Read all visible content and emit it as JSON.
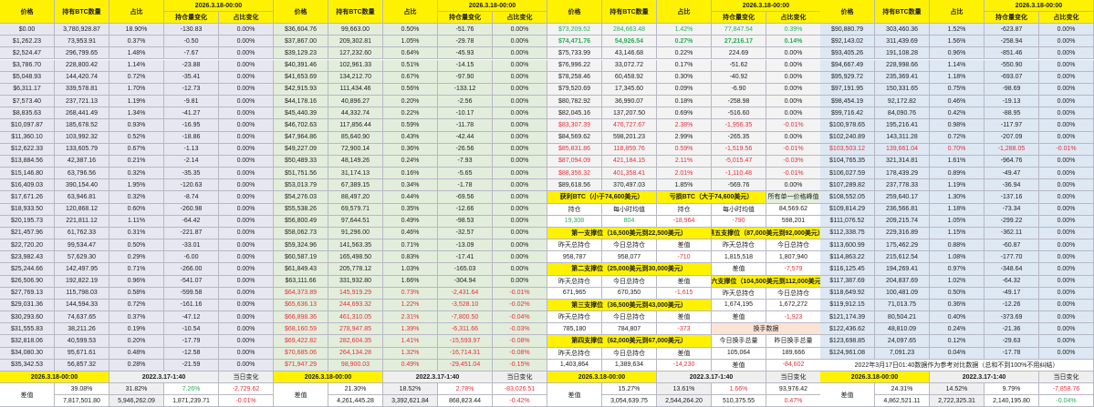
{
  "headers": {
    "price": "价格",
    "btc": "持有BTC数量",
    "pct": "占比",
    "date": "2026.3.18-00:00",
    "chg": "持仓量变化",
    "pctchg": "占比变化"
  },
  "colors": {
    "header": "#fff200",
    "red": "#e0323c",
    "green": "#2eaa5a"
  },
  "blocks": [
    {
      "rows": [
        [
          "$0.00",
          "3,780,928.87",
          "18.90%",
          "-130.83",
          "0.00%",
          ""
        ],
        [
          "$1,262.23",
          "73,953.91",
          "0.37%",
          "-0.50",
          "0.00%",
          ""
        ],
        [
          "$2,524.47",
          "296,799.65",
          "1.48%",
          "-7.67",
          "0.00%",
          ""
        ],
        [
          "$3,786.70",
          "228,800.42",
          "1.14%",
          "-23.88",
          "0.00%",
          ""
        ],
        [
          "$5,048.93",
          "144,420.74",
          "0.72%",
          "-35.41",
          "0.00%",
          ""
        ],
        [
          "$6,311.17",
          "339,578.81",
          "1.70%",
          "-12.73",
          "0.00%",
          ""
        ],
        [
          "$7,573.40",
          "237,721.13",
          "1.19%",
          "-9.81",
          "0.00%",
          ""
        ],
        [
          "$8,835.63",
          "268,441.49",
          "1.34%",
          "-41.27",
          "0.00%",
          ""
        ],
        [
          "$10,097.87",
          "185,678.52",
          "0.93%",
          "-16.95",
          "0.00%",
          ""
        ],
        [
          "$11,360.10",
          "103,992.32",
          "0.52%",
          "-18.86",
          "0.00%",
          ""
        ],
        [
          "$12,622.33",
          "133,605.79",
          "0.67%",
          "-1.13",
          "0.00%",
          ""
        ],
        [
          "$13,884.56",
          "42,387.16",
          "0.21%",
          "-2.14",
          "0.00%",
          ""
        ],
        [
          "$15,146.80",
          "63,796.56",
          "0.32%",
          "-35.35",
          "0.00%",
          ""
        ],
        [
          "$16,409.03",
          "390,154.40",
          "1.95%",
          "-120.63",
          "0.00%",
          ""
        ],
        [
          "$17,671.26",
          "63,946.81",
          "0.32%",
          "-8.74",
          "0.00%",
          ""
        ],
        [
          "$18,933.50",
          "120,868.12",
          "0.60%",
          "-260.98",
          "0.00%",
          ""
        ],
        [
          "$20,195.73",
          "221,811.12",
          "1.11%",
          "-64.42",
          "0.00%",
          ""
        ],
        [
          "$21,457.96",
          "61,762.33",
          "0.31%",
          "-221.87",
          "0.00%",
          ""
        ],
        [
          "$22,720.20",
          "99,534.47",
          "0.50%",
          "-33.01",
          "0.00%",
          ""
        ],
        [
          "$23,982.43",
          "57,629.30",
          "0.29%",
          "-6.00",
          "0.00%",
          ""
        ],
        [
          "$25,244.66",
          "142,497.95",
          "0.71%",
          "-266.00",
          "0.00%",
          ""
        ],
        [
          "$26,506.90",
          "192,822.19",
          "0.96%",
          "-541.07",
          "0.00%",
          ""
        ],
        [
          "$27,769.13",
          "115,798.03",
          "0.58%",
          "-599.58",
          "0.00%",
          ""
        ],
        [
          "$29,031.36",
          "144,594.33",
          "0.72%",
          "-161.16",
          "0.00%",
          ""
        ],
        [
          "$30,293.60",
          "74,637.65",
          "0.37%",
          "-47.12",
          "0.00%",
          ""
        ],
        [
          "$31,555.83",
          "38,211.26",
          "0.19%",
          "-10.54",
          "0.00%",
          ""
        ],
        [
          "$32,818.06",
          "40,599.53",
          "0.20%",
          "-17.79",
          "0.00%",
          ""
        ],
        [
          "$34,080.30",
          "95,671.61",
          "0.48%",
          "-12.58",
          "0.00%",
          ""
        ],
        [
          "$35,342.53",
          "56,857.32",
          "0.28%",
          "-21.59",
          "0.00%",
          ""
        ]
      ],
      "footer": {
        "date_now": "2026.3.18-00:00",
        "date_ref": "2022.3.17-1:40",
        "daily": "当日变化",
        "label": "差值",
        "r1": [
          "39.08%",
          "31.82%",
          "7.26%",
          "-2,729.62"
        ],
        "r1tone": [
          "",
          "",
          "g",
          "r"
        ],
        "r2": [
          "7,817,501.80",
          "5,946,262.09",
          "1,871,239.71",
          "-0.01%"
        ],
        "r2tone": [
          "",
          "",
          "",
          "r"
        ]
      }
    },
    {
      "rows": [
        [
          "$36,604.76",
          "99,663.00",
          "0.50%",
          "-51.76",
          "0.00%",
          ""
        ],
        [
          "$37,867.00",
          "209,302.81",
          "1.05%",
          "-29.78",
          "0.00%",
          ""
        ],
        [
          "$39,129.23",
          "127,232.60",
          "0.64%",
          "-45.93",
          "0.00%",
          ""
        ],
        [
          "$40,391.46",
          "102,961.33",
          "0.51%",
          "-14.15",
          "0.00%",
          ""
        ],
        [
          "$41,653.69",
          "134,212.70",
          "0.67%",
          "-97.90",
          "0.00%",
          ""
        ],
        [
          "$42,915.93",
          "111,434.46",
          "0.56%",
          "-133.12",
          "0.00%",
          ""
        ],
        [
          "$44,178.16",
          "40,896.27",
          "0.20%",
          "-2.56",
          "0.00%",
          ""
        ],
        [
          "$45,440.39",
          "44,332.74",
          "0.22%",
          "-10.17",
          "0.00%",
          ""
        ],
        [
          "$46,702.63",
          "117,856.44",
          "0.59%",
          "-11.78",
          "0.00%",
          ""
        ],
        [
          "$47,964.86",
          "85,640.90",
          "0.43%",
          "-42.44",
          "0.00%",
          ""
        ],
        [
          "$49,227.09",
          "72,900.14",
          "0.36%",
          "-26.56",
          "0.00%",
          ""
        ],
        [
          "$50,489.33",
          "48,149.26",
          "0.24%",
          "-7.93",
          "0.00%",
          ""
        ],
        [
          "$51,751.56",
          "31,174.13",
          "0.16%",
          "-5.65",
          "0.00%",
          ""
        ],
        [
          "$53,013.79",
          "67,389.15",
          "0.34%",
          "-1.78",
          "0.00%",
          ""
        ],
        [
          "$54,276.03",
          "88,497.20",
          "0.44%",
          "-69.56",
          "0.00%",
          ""
        ],
        [
          "$55,538.26",
          "69,579.71",
          "0.35%",
          "-12.66",
          "0.00%",
          ""
        ],
        [
          "$56,800.49",
          "97,644.51",
          "0.49%",
          "-98.53",
          "0.00%",
          ""
        ],
        [
          "$58,062.73",
          "91,296.00",
          "0.46%",
          "-32.57",
          "0.00%",
          ""
        ],
        [
          "$59,324.96",
          "141,563.35",
          "0.71%",
          "-13.09",
          "0.00%",
          ""
        ],
        [
          "$60,587.19",
          "165,498.50",
          "0.83%",
          "-17.41",
          "0.00%",
          ""
        ],
        [
          "$61,849.43",
          "205,778.12",
          "1.03%",
          "-165.03",
          "0.00%",
          ""
        ],
        [
          "$63,111.66",
          "331,932.80",
          "1.66%",
          "-304.94",
          "0.00%",
          ""
        ],
        [
          "$64,373.89",
          "145,919.29",
          "0.73%",
          "-2,431.64",
          "-0.01%",
          "r"
        ],
        [
          "$65,636.13",
          "244,693.32",
          "1.22%",
          "-3,528.10",
          "-0.02%",
          "r"
        ],
        [
          "$66,898.36",
          "461,310.05",
          "2.31%",
          "-7,800.50",
          "-0.04%",
          "r"
        ],
        [
          "$68,160.59",
          "278,947.85",
          "1.39%",
          "-6,311.66",
          "-0.03%",
          "r"
        ],
        [
          "$69,422.82",
          "282,604.35",
          "1.41%",
          "-15,593.97",
          "-0.08%",
          "r"
        ],
        [
          "$70,685.06",
          "264,134.28",
          "1.32%",
          "-16,714.31",
          "-0.08%",
          "r"
        ],
        [
          "$71,947.29",
          "98,900.03",
          "0.49%",
          "-29,451.04",
          "-0.15%",
          "r"
        ]
      ],
      "footer": {
        "date_now": "2026.3.18-00:00",
        "date_ref": "2022.3.17-1:40",
        "daily": "当日变化",
        "label": "差值",
        "r1": [
          "21.30%",
          "18.52%",
          "2.78%",
          "-83,026.51"
        ],
        "r1tone": [
          "",
          "",
          "r",
          "r"
        ],
        "r2": [
          "4,261,445.28",
          "3,392,621.84",
          "868,823.44",
          "-0.42%"
        ],
        "r2tone": [
          "",
          "",
          "",
          "r"
        ]
      }
    },
    {
      "rows": [
        [
          "$73,209.52",
          "284,663.48",
          "1.42%",
          "77,847.54",
          "0.39%",
          "g"
        ],
        [
          "$74,471.76",
          "54,926.54",
          "0.27%",
          "27,216.17",
          "0.14%",
          "gb"
        ],
        [
          "$75,733.99",
          "43,146.68",
          "0.22%",
          "224.69",
          "0.00%",
          ""
        ],
        [
          "$76,996.22",
          "33,072.72",
          "0.17%",
          "-51.62",
          "0.00%",
          ""
        ],
        [
          "$78,258.46",
          "60,458.92",
          "0.30%",
          "-40.92",
          "0.00%",
          ""
        ],
        [
          "$79,520.69",
          "17,345.60",
          "0.09%",
          "-6.90",
          "0.00%",
          ""
        ],
        [
          "$80,782.92",
          "36,990.07",
          "0.18%",
          "-258.98",
          "0.00%",
          ""
        ],
        [
          "$82,045.16",
          "137,207.50",
          "0.69%",
          "-516.60",
          "0.00%",
          ""
        ],
        [
          "$83,307.39",
          "476,727.67",
          "2.38%",
          "-1,956.35",
          "-0.01%",
          "r"
        ],
        [
          "$84,569.62",
          "598,201.23",
          "2.99%",
          "-265.35",
          "0.00%",
          ""
        ],
        [
          "$85,831.86",
          "118,859.76",
          "0.59%",
          "-1,519.56",
          "-0.01%",
          "r"
        ],
        [
          "$87,094.09",
          "421,184.15",
          "2.11%",
          "-5,015.47",
          "-0.03%",
          "r"
        ],
        [
          "$88,356.32",
          "401,358.41",
          "2.01%",
          "-1,110.48",
          "-0.01%",
          "r"
        ],
        [
          "$89,618.56",
          "370,497.03",
          "1.85%",
          "-569.76",
          "0.00%",
          ""
        ]
      ],
      "panel": {
        "profit": "获利BTC（小于74,600美元）",
        "loss": "亏损BTC（大于74,600美元）",
        "peak": "所有单一价格峰值",
        "hold": "持仓",
        "hourly": "每小时均值",
        "peak_price": "84,569.62",
        "peak_value": "598,201",
        "profit_hold": "19,308",
        "profit_hourly": "804",
        "loss_hold": "-18,964",
        "loss_hourly": "-790",
        "yesterday": "昨天总持仓",
        "today": "今日总持仓",
        "diff": "差值",
        "s1": {
          "title": "第一支撑位（16,500美元到22,500美元）",
          "y": "958,787",
          "t": "958,077",
          "d": "-710"
        },
        "s2": {
          "title": "第二支撑位（25,000美元到30,000美元）",
          "y": "671,965",
          "t": "670,350",
          "d": "-1,615"
        },
        "s3": {
          "title": "第三支撑位（36,500美元到43,000美元）",
          "y": "785,180",
          "t": "784,807",
          "d": "-373"
        },
        "s4": {
          "title": "第四支撑位（62,000美元到67,000美元）",
          "y": "1,403,864",
          "t": "1,389,634",
          "d": "-14,230"
        },
        "s5": {
          "title": "第五支撑位（87,000美元到92,000美元）",
          "y": "1,815,518",
          "t": "1,807,940",
          "d": "-7,579"
        },
        "s6": {
          "title": "第六支撑位（104,500美元到112,000美元）",
          "y": "1,674,195",
          "t": "1,672,272",
          "d": "-1,923"
        },
        "turnover": {
          "title": "换手数据",
          "today": "今日换手总量",
          "yesterday": "昨日换手总量",
          "t": "105,064",
          "y": "189,666",
          "d": "-84,602"
        }
      },
      "footer": {
        "date_now": "2026.3.18-00:00",
        "date_ref": "2022.3.17-1:40",
        "daily": "当日变化",
        "label": "差值",
        "r1": [
          "15.27%",
          "13.61%",
          "1.66%",
          "93,976.42"
        ],
        "r1tone": [
          "",
          "",
          "r",
          ""
        ],
        "r2": [
          "3,054,639.75",
          "2,544,264.20",
          "510,375.55",
          "0.47%"
        ],
        "r2tone": [
          "",
          "",
          "",
          "r"
        ]
      }
    },
    {
      "rows": [
        [
          "$90,880.79",
          "303,460.36",
          "1.52%",
          "-623.87",
          "0.00%",
          ""
        ],
        [
          "$92,143.02",
          "311,439.69",
          "1.56%",
          "-258.94",
          "0.00%",
          ""
        ],
        [
          "$93,405.26",
          "191,108.28",
          "0.96%",
          "-851.46",
          "0.00%",
          ""
        ],
        [
          "$94,667.49",
          "228,998.66",
          "1.14%",
          "-550.90",
          "0.00%",
          ""
        ],
        [
          "$95,929.72",
          "235,369.41",
          "1.18%",
          "-693.07",
          "0.00%",
          ""
        ],
        [
          "$97,191.95",
          "150,331.65",
          "0.75%",
          "-98.69",
          "0.00%",
          ""
        ],
        [
          "$98,454.19",
          "92,172.82",
          "0.46%",
          "-19.13",
          "0.00%",
          ""
        ],
        [
          "$99,716.42",
          "84,090.76",
          "0.42%",
          "-88.95",
          "0.00%",
          ""
        ],
        [
          "$100,978.65",
          "195,216.41",
          "0.98%",
          "-117.97",
          "0.00%",
          ""
        ],
        [
          "$102,240.89",
          "143,311.28",
          "0.72%",
          "-207.09",
          "0.00%",
          ""
        ],
        [
          "$103,503.12",
          "139,661.04",
          "0.70%",
          "-1,288.05",
          "-0.01%",
          "r"
        ],
        [
          "$104,765.35",
          "321,314.81",
          "1.61%",
          "-964.76",
          "0.00%",
          ""
        ],
        [
          "$106,027.59",
          "178,439.29",
          "0.89%",
          "-49.47",
          "0.00%",
          ""
        ],
        [
          "$107,289.82",
          "237,778.33",
          "1.19%",
          "-36.94",
          "0.00%",
          ""
        ],
        [
          "$108,552.05",
          "259,640.17",
          "1.30%",
          "-137.16",
          "0.00%",
          ""
        ],
        [
          "$109,814.29",
          "236,566.81",
          "1.18%",
          "-73.34",
          "0.00%",
          ""
        ],
        [
          "$111,076.52",
          "209,215.74",
          "1.05%",
          "-299.22",
          "0.00%",
          ""
        ],
        [
          "$112,338.75",
          "229,316.89",
          "1.15%",
          "-362.11",
          "0.00%",
          ""
        ],
        [
          "$113,600.99",
          "175,462.29",
          "0.88%",
          "-60.87",
          "0.00%",
          ""
        ],
        [
          "$114,863.22",
          "215,612.54",
          "1.08%",
          "-177.70",
          "0.00%",
          ""
        ],
        [
          "$116,125.45",
          "194,269.41",
          "0.97%",
          "-348.64",
          "0.00%",
          ""
        ],
        [
          "$117,387.69",
          "204,837.69",
          "1.02%",
          "-64.32",
          "0.00%",
          ""
        ],
        [
          "$118,649.92",
          "100,481.09",
          "0.50%",
          "-49.17",
          "0.00%",
          ""
        ],
        [
          "$119,912.15",
          "71,013.75",
          "0.36%",
          "-12.26",
          "0.00%",
          ""
        ],
        [
          "$121,174.39",
          "80,504.21",
          "0.40%",
          "-373.69",
          "0.00%",
          ""
        ],
        [
          "$122,436.62",
          "48,810.09",
          "0.24%",
          "-21.36",
          "0.00%",
          ""
        ],
        [
          "$123,698.85",
          "24,097.65",
          "0.12%",
          "-29.63",
          "0.00%",
          ""
        ],
        [
          "$124,961.08",
          "7,091.23",
          "0.04%",
          "-17.78",
          "0.00%",
          ""
        ]
      ],
      "note": "2022年3月17日01:40数据作为参考对比数据（总和不到100%不用纠结）",
      "footer": {
        "date_now": "2026.3.18-00:00",
        "date_ref": "2022.3.17-1:40",
        "daily": "当日变化",
        "label": "差值",
        "r1": [
          "24.31%",
          "14.52%",
          "9.79%",
          "-7,858.76"
        ],
        "r1tone": [
          "",
          "",
          "",
          "r"
        ],
        "r2": [
          "4,862,521.11",
          "2,722,325.31",
          "2,140,195.80",
          "-0.04%"
        ],
        "r2tone": [
          "",
          "",
          "",
          "g"
        ]
      }
    }
  ]
}
